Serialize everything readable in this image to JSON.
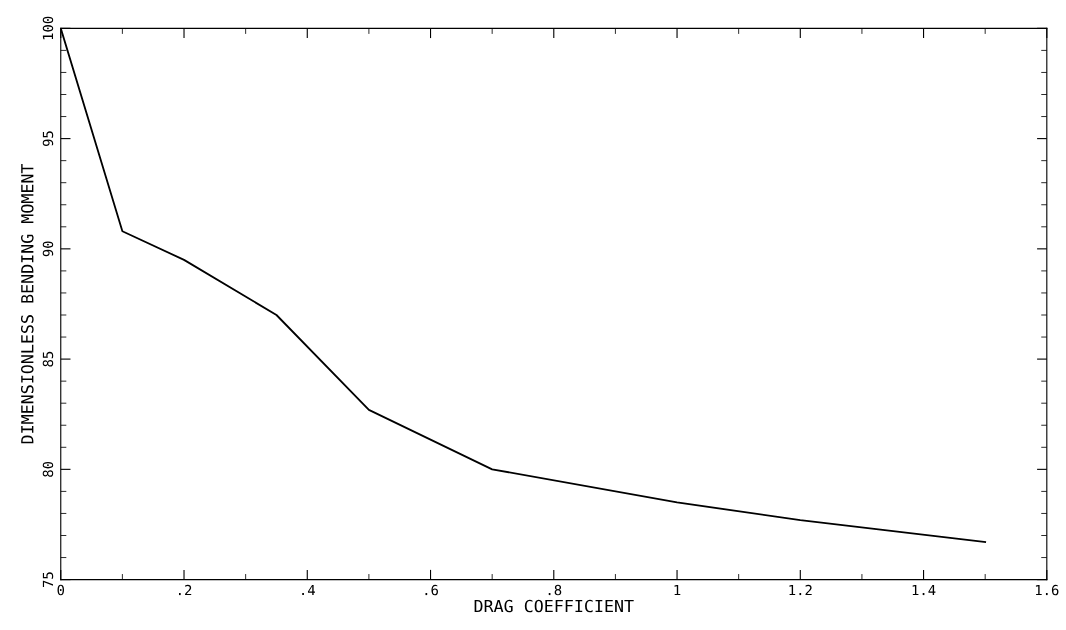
{
  "chart_data": {
    "type": "line",
    "xlabel": "DRAG COEFFICIENT",
    "ylabel": "DIMENSIONLESS BENDING MOMENT",
    "x": [
      0,
      0.1,
      0.2,
      0.35,
      0.5,
      0.7,
      1.0,
      1.2,
      1.5
    ],
    "series": [
      {
        "color": "#000000",
        "values": [
          100,
          90.8,
          89.5,
          87.0,
          82.7,
          80.0,
          78.5,
          77.7,
          76.7
        ]
      }
    ],
    "xlim": [
      0,
      1.6
    ],
    "ylim": [
      75,
      100
    ],
    "xticks": [
      0,
      {
        "value": 0.2,
        "label": ".2"
      },
      {
        "value": 0.4,
        "label": ".4"
      },
      {
        "value": 0.6,
        "label": ".6"
      },
      {
        "value": 0.8,
        "label": ".8"
      },
      1,
      1.2,
      1.4,
      1.6
    ],
    "yticks": [
      75,
      80,
      85,
      90,
      95,
      100
    ],
    "grid": false,
    "marker": "none",
    "line_style": "solid"
  }
}
